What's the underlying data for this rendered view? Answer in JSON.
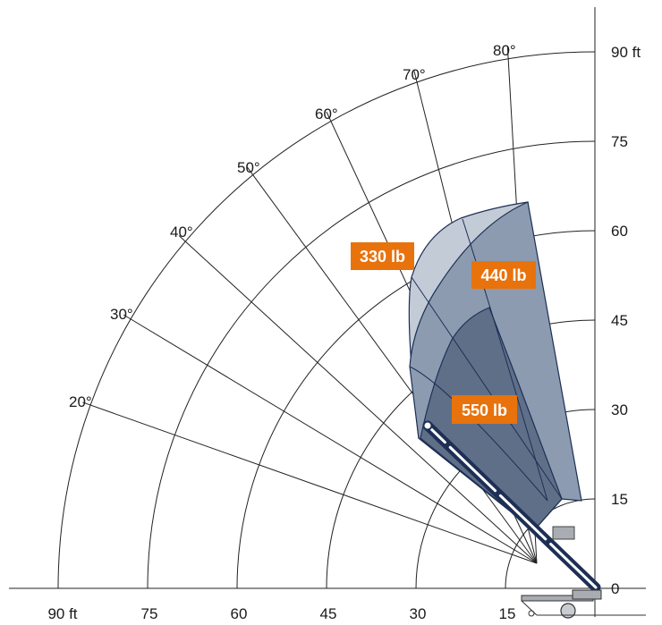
{
  "chart_data": {
    "type": "load-range-diagram",
    "vertical_axis_labels": [
      "0",
      "15",
      "30",
      "45",
      "60",
      "75",
      "90 ft"
    ],
    "horizontal_axis_labels": [
      "15",
      "30",
      "45",
      "60",
      "75",
      "90 ft"
    ],
    "angle_labels": [
      "20°",
      "30°",
      "40°",
      "50°",
      "60°",
      "70°",
      "80°"
    ],
    "angles_deg": [
      20,
      30,
      40,
      50,
      60,
      70,
      80
    ],
    "radii_ft": [
      15,
      30,
      45,
      60,
      75,
      90
    ],
    "zones": [
      {
        "load": "330 lb",
        "color": "#c3cbd7"
      },
      {
        "load": "440 lb",
        "color": "#8c9bb0"
      },
      {
        "load": "550 lb",
        "color": "#5f6f88"
      }
    ],
    "label_color": "#e8720c",
    "outline_color": "#1d2f55"
  }
}
